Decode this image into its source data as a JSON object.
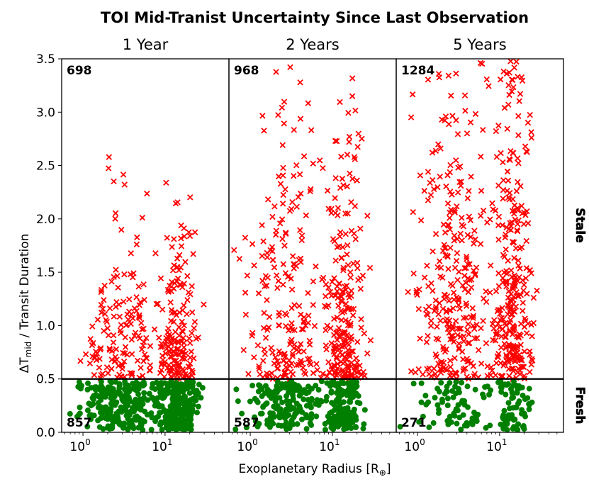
{
  "chart_data": {
    "type": "scatter",
    "title": "TOI Mid-Tranist Uncertainty Since Last Observation",
    "ylabel": {
      "main": "ΔT",
      "sub": "mid",
      "rest": " / Transit Duration"
    },
    "xlabel": {
      "main": "Exoplanetary Radius [R",
      "sub": "⊕",
      "rest": "]"
    },
    "x_scale": "log",
    "xlim": [
      0.55,
      60
    ],
    "ylim": [
      0.0,
      3.5
    ],
    "y_ticks": [
      "0.0",
      "0.5",
      "1.0",
      "1.5",
      "2.0",
      "2.5",
      "3.0",
      "3.5"
    ],
    "x_ticks": [
      {
        "base": "10",
        "exp": "0",
        "value": 1
      },
      {
        "base": "10",
        "exp": "1",
        "value": 10
      }
    ],
    "threshold": 0.5,
    "side_labels": {
      "stale": "Stale",
      "fresh": "Fresh"
    },
    "colors": {
      "stale": "#ff0000",
      "fresh": "#007f00",
      "axes": "#000000"
    },
    "panels": [
      {
        "title": "1 Year",
        "stale_count": "698",
        "fresh_count": "857",
        "seed": 11
      },
      {
        "title": "2 Years",
        "stale_count": "968",
        "fresh_count": "587",
        "seed": 23
      },
      {
        "title": "5 Years",
        "stale_count": "1284",
        "fresh_count": "271",
        "seed": 37
      }
    ]
  }
}
